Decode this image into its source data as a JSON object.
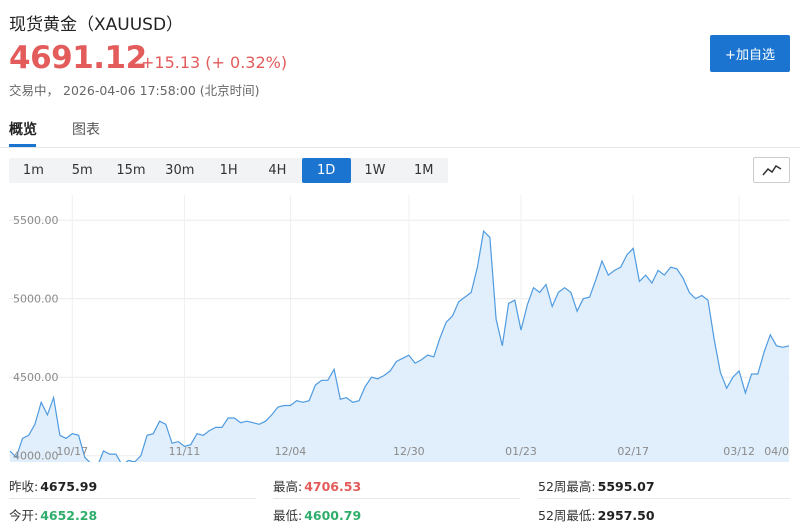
{
  "header": {
    "title": "现货黄金（XAUUSD）",
    "price": "4691.12",
    "change": "+15.13 (+ 0.32%)",
    "status": "交易中，",
    "datetime": "2026-04-06 17:58:00 (北京时间)",
    "add_button": "+加自选"
  },
  "tabs": [
    {
      "label": "概览",
      "active": true
    },
    {
      "label": "图表",
      "active": false
    }
  ],
  "periods": [
    {
      "label": "1m",
      "active": false
    },
    {
      "label": "5m",
      "active": false
    },
    {
      "label": "15m",
      "active": false
    },
    {
      "label": "30m",
      "active": false
    },
    {
      "label": "1H",
      "active": false
    },
    {
      "label": "4H",
      "active": false
    },
    {
      "label": "1D",
      "active": true
    },
    {
      "label": "1W",
      "active": false
    },
    {
      "label": "1M",
      "active": false
    }
  ],
  "chart_type_icon": "line-chart-icon",
  "colors": {
    "up": "#e35b5b",
    "down": "#2fae6b",
    "accent": "#1b75d0",
    "line": "#4f9be0",
    "fill": "#e1eefb"
  },
  "chart_data": {
    "type": "area",
    "xlabel": "",
    "ylabel": "",
    "ylim": [
      3960,
      5660
    ],
    "yticks": [
      "5500.00",
      "5000.00",
      "4500.00",
      "4000.00"
    ],
    "ytick_values": [
      5500,
      5000,
      4500,
      4000
    ],
    "xticks": [
      "10/17",
      "11/11",
      "12/04",
      "12/30",
      "01/23",
      "02/17",
      "03/12",
      "04/0"
    ],
    "xtick_index": [
      10,
      28,
      45,
      64,
      82,
      100,
      117,
      135
    ],
    "grid": true,
    "series": [
      {
        "values": [
          4030,
          3990,
          4110,
          4130,
          4200,
          4340,
          4260,
          4370,
          4130,
          4110,
          4140,
          4130,
          3990,
          3950,
          3930,
          4030,
          4010,
          4010,
          3940,
          3970,
          3960,
          4000,
          4130,
          4140,
          4220,
          4200,
          4080,
          4090,
          4060,
          4070,
          4140,
          4130,
          4160,
          4180,
          4180,
          4240,
          4240,
          4210,
          4220,
          4210,
          4200,
          4220,
          4260,
          4310,
          4320,
          4320,
          4350,
          4340,
          4350,
          4450,
          4480,
          4480,
          4550,
          4360,
          4370,
          4340,
          4350,
          4440,
          4500,
          4490,
          4510,
          4540,
          4600,
          4620,
          4640,
          4590,
          4610,
          4640,
          4630,
          4750,
          4850,
          4890,
          4980,
          5010,
          5040,
          5200,
          5430,
          5390,
          4870,
          4700,
          4970,
          4990,
          4800,
          4960,
          5070,
          5040,
          5090,
          4950,
          5040,
          5070,
          5040,
          4920,
          5000,
          5010,
          5120,
          5240,
          5150,
          5180,
          5200,
          5280,
          5320,
          5110,
          5150,
          5100,
          5180,
          5150,
          5200,
          5190,
          5130,
          5040,
          5000,
          5020,
          4990,
          4740,
          4530,
          4430,
          4500,
          4540,
          4400,
          4520,
          4520,
          4660,
          4770,
          4700,
          4690,
          4700
        ]
      }
    ]
  },
  "stats": [
    [
      {
        "label": "昨收:",
        "value": "4675.99",
        "tone": "neutral"
      },
      {
        "label": "最高:",
        "value": "4706.53",
        "tone": "up"
      },
      {
        "label": "52周最高:",
        "value": "5595.07",
        "tone": "neutral"
      }
    ],
    [
      {
        "label": "今开:",
        "value": "4652.28",
        "tone": "down"
      },
      {
        "label": "最低:",
        "value": "4600.79",
        "tone": "down"
      },
      {
        "label": "52周最低:",
        "value": "2957.50",
        "tone": "neutral"
      }
    ]
  ]
}
